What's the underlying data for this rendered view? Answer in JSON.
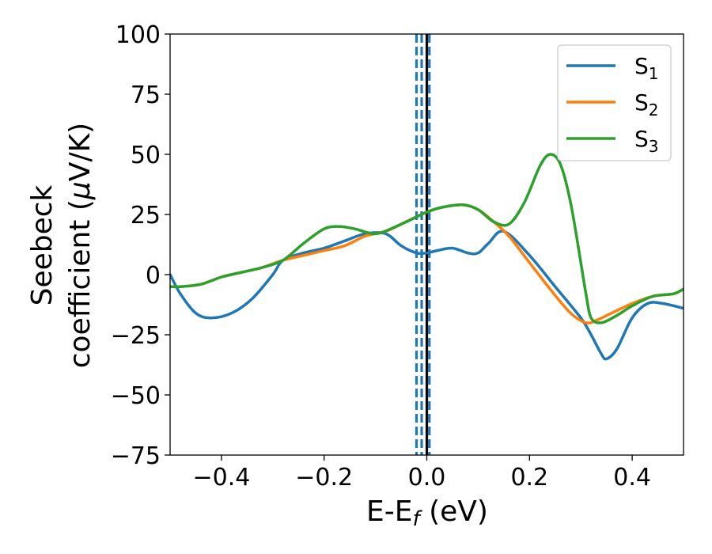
{
  "chart_data": {
    "type": "line",
    "title": "",
    "xlabel": {
      "main": "E-E",
      "sub": "f",
      "unit": " (eV)"
    },
    "ylabel": {
      "line1": "Seebeck",
      "line2": "coefficient  (",
      "mu": "μ",
      "line2_end": "V/K)"
    },
    "xlim": [
      -0.5,
      0.5
    ],
    "ylim": [
      -75,
      100
    ],
    "xticks": [
      -0.4,
      -0.2,
      0.0,
      0.2,
      0.4
    ],
    "xtick_labels": [
      "−0.4",
      "−0.2",
      "0.0",
      "0.2",
      "0.4"
    ],
    "yticks": [
      -75,
      -50,
      -25,
      0,
      25,
      50,
      75,
      100
    ],
    "ytick_labels": [
      "−75",
      "−50",
      "−25",
      "0",
      "25",
      "50",
      "75",
      "100"
    ],
    "grid": false,
    "legend_position": "top-right",
    "vertical_lines": [
      {
        "x": -0.02,
        "style": "dashed",
        "color": "#1f77b4"
      },
      {
        "x": -0.01,
        "style": "dashed",
        "color": "#1f77b4"
      },
      {
        "x": 0.0,
        "style": "solid",
        "color": "#000000"
      },
      {
        "x": 0.005,
        "style": "dashed",
        "color": "#1f77b4"
      }
    ],
    "series": [
      {
        "name": "S",
        "sub": "1",
        "color": "#1f77b4",
        "x": [
          -0.5,
          -0.48,
          -0.45,
          -0.42,
          -0.38,
          -0.34,
          -0.3,
          -0.28,
          -0.24,
          -0.2,
          -0.16,
          -0.12,
          -0.08,
          -0.05,
          -0.02,
          0.0,
          0.02,
          0.05,
          0.08,
          0.1,
          0.12,
          0.15,
          0.2,
          0.25,
          0.3,
          0.32,
          0.34,
          0.35,
          0.37,
          0.4,
          0.43,
          0.46,
          0.5
        ],
        "y": [
          0,
          -8,
          -16,
          -18,
          -16,
          -10,
          0,
          6,
          9,
          11,
          14,
          17,
          17,
          12,
          9,
          9,
          10,
          11,
          9,
          9,
          13,
          18,
          8,
          -5,
          -18,
          -25,
          -33,
          -35,
          -31,
          -18,
          -12,
          -12,
          -14
        ]
      },
      {
        "name": "S",
        "sub": "2",
        "color": "#ff7f0e",
        "x": [
          -0.5,
          -0.48,
          -0.44,
          -0.4,
          -0.36,
          -0.32,
          -0.28,
          -0.24,
          -0.2,
          -0.16,
          -0.12,
          -0.08,
          -0.04,
          0.0,
          0.03,
          0.07,
          0.1,
          0.13,
          0.16,
          0.2,
          0.24,
          0.28,
          0.31,
          0.33,
          0.36,
          0.4,
          0.44,
          0.48,
          0.5
        ],
        "y": [
          -5,
          -5,
          -4,
          -1,
          1,
          3,
          6,
          8,
          10,
          12,
          16,
          18,
          22,
          26,
          28,
          29,
          27,
          22,
          16,
          5,
          -6,
          -16,
          -20,
          -19,
          -16,
          -12,
          -9,
          -8,
          -6
        ]
      },
      {
        "name": "S",
        "sub": "3",
        "color": "#2ca02c",
        "x": [
          -0.5,
          -0.48,
          -0.44,
          -0.4,
          -0.36,
          -0.32,
          -0.28,
          -0.24,
          -0.2,
          -0.17,
          -0.14,
          -0.1,
          -0.06,
          -0.02,
          0.0,
          0.03,
          0.07,
          0.1,
          0.13,
          0.16,
          0.19,
          0.22,
          0.24,
          0.26,
          0.28,
          0.3,
          0.31,
          0.32,
          0.34,
          0.37,
          0.4,
          0.44,
          0.48,
          0.5
        ],
        "y": [
          -5,
          -5,
          -4,
          -1,
          1,
          3,
          6,
          13,
          19,
          20,
          19,
          17,
          20,
          24,
          26,
          28,
          29,
          27,
          22,
          21,
          30,
          45,
          50,
          46,
          30,
          5,
          -8,
          -18,
          -20,
          -17,
          -13,
          -9,
          -8,
          -6
        ]
      }
    ]
  }
}
